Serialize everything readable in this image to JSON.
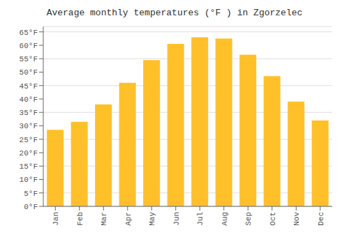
{
  "chart_data": {
    "type": "bar",
    "title": "Average monthly temperatures (°F ) in Zgorzelec",
    "categories": [
      "Jan",
      "Feb",
      "Mar",
      "Apr",
      "May",
      "Jun",
      "Jul",
      "Aug",
      "Sep",
      "Oct",
      "Nov",
      "Dec"
    ],
    "values": [
      28.5,
      31.5,
      38.0,
      46.0,
      54.5,
      60.5,
      63.0,
      62.5,
      56.5,
      48.5,
      39.0,
      32.0
    ],
    "color": "#FFC02A",
    "ylim": [
      0,
      67
    ],
    "yticks": [
      {
        "value": 0,
        "label": "0°F"
      },
      {
        "value": 5,
        "label": "5°F"
      },
      {
        "value": 10,
        "label": "10°F"
      },
      {
        "value": 15,
        "label": "15°F"
      },
      {
        "value": 20,
        "label": "20°F"
      },
      {
        "value": 25,
        "label": "25°F"
      },
      {
        "value": 30,
        "label": "30°F"
      },
      {
        "value": 35,
        "label": "35°F"
      },
      {
        "value": 40,
        "label": "40°F"
      },
      {
        "value": 45,
        "label": "45°F"
      },
      {
        "value": 50,
        "label": "50°F"
      },
      {
        "value": 55,
        "label": "55°F"
      },
      {
        "value": 60,
        "label": "60°F"
      },
      {
        "value": 65,
        "label": "65°F"
      }
    ],
    "grid": true
  }
}
